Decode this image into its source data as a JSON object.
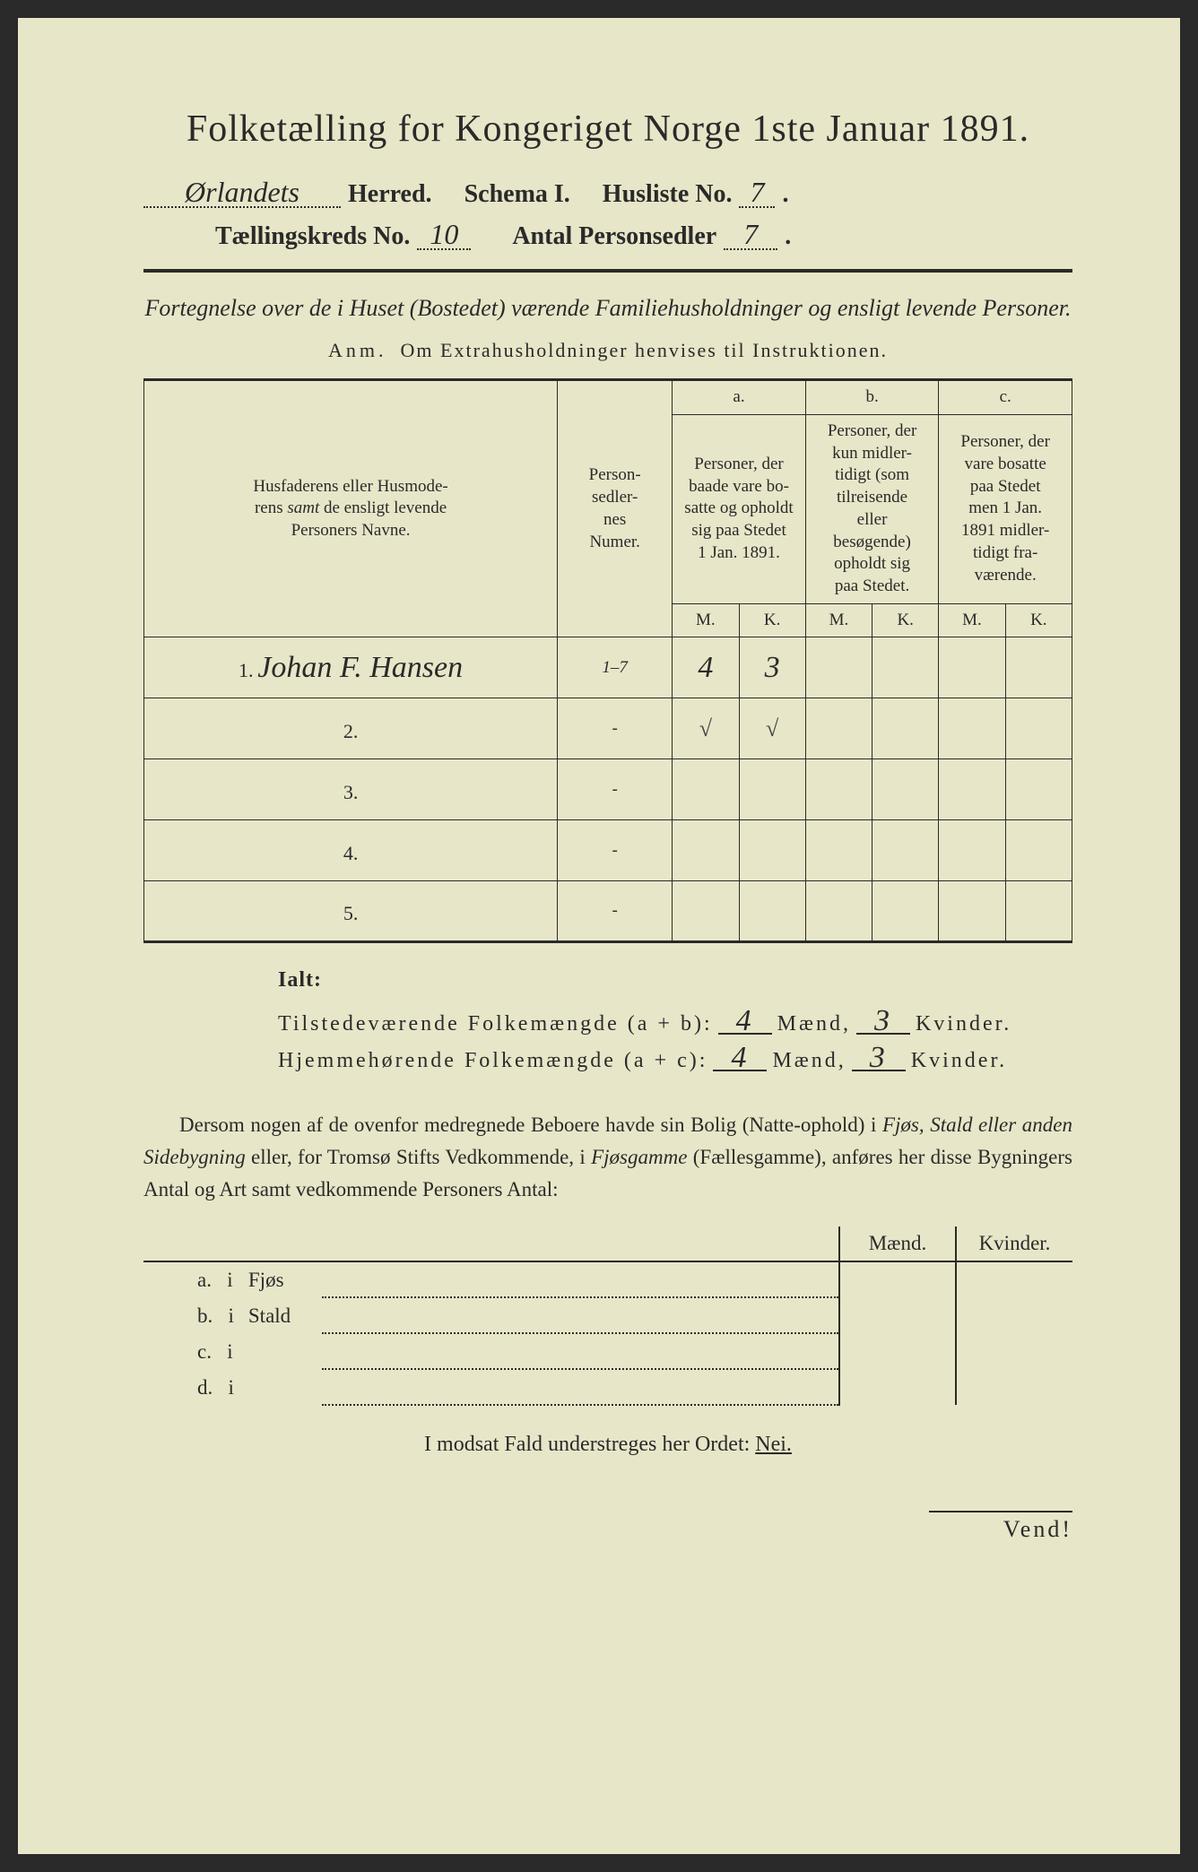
{
  "colors": {
    "paper": "#e8e6c8",
    "ink": "#2a2a2a",
    "outer": "#2a2a2a"
  },
  "title": "Folketælling for Kongeriget Norge 1ste Januar 1891.",
  "header": {
    "herred_value": "Ørlandets",
    "herred_label": "Herred.",
    "schema_label": "Schema I.",
    "husliste_label": "Husliste No.",
    "husliste_no": "7",
    "kreds_label": "Tællingskreds No.",
    "kreds_no": "10",
    "personsedler_label": "Antal Personsedler",
    "personsedler_no": "7"
  },
  "subtitle": "Fortegnelse over de i Huset (Bostedet) værende Familiehusholdninger og ensligt levende Personer.",
  "anm_label": "Anm.",
  "anm_text": "Om Extrahusholdninger henvises til Instruktionen.",
  "table": {
    "col_name": "Husfaderens eller Husmoderens samt de ensligt levende Personers Navne.",
    "col_numer": "Person-sedler-nes Numer.",
    "col_a_label": "a.",
    "col_a": "Personer, der baade vare bosatte og opholdt sig paa Stedet 1 Jan. 1891.",
    "col_b_label": "b.",
    "col_b": "Personer, der kun midlertidigt (som tilreisende eller besøgende) opholdt sig paa Stedet.",
    "col_c_label": "c.",
    "col_c": "Personer, der vare bosatte paa Stedet men 1 Jan. 1891 midlertidigt fraværende.",
    "m": "M.",
    "k": "K.",
    "rows": [
      {
        "num": "1.",
        "name": "Johan F. Hansen",
        "numer": "1–7",
        "a_m": "4",
        "a_k": "3",
        "b_m": "",
        "b_k": "",
        "c_m": "",
        "c_k": ""
      },
      {
        "num": "2.",
        "name": "",
        "numer": "-",
        "a_m": "√",
        "a_k": "√",
        "b_m": "",
        "b_k": "",
        "c_m": "",
        "c_k": ""
      },
      {
        "num": "3.",
        "name": "",
        "numer": "-",
        "a_m": "",
        "a_k": "",
        "b_m": "",
        "b_k": "",
        "c_m": "",
        "c_k": ""
      },
      {
        "num": "4.",
        "name": "",
        "numer": "-",
        "a_m": "",
        "a_k": "",
        "b_m": "",
        "b_k": "",
        "c_m": "",
        "c_k": ""
      },
      {
        "num": "5.",
        "name": "",
        "numer": "-",
        "a_m": "",
        "a_k": "",
        "b_m": "",
        "b_k": "",
        "c_m": "",
        "c_k": ""
      }
    ]
  },
  "ialt": {
    "title": "Ialt:",
    "line1_label": "Tilstedeværende Folkemængde (a + b):",
    "line2_label": "Hjemmehørende Folkemængde (a + c):",
    "maend": "Mænd,",
    "kvinder": "Kvinder.",
    "tilstede_m": "4",
    "tilstede_k": "3",
    "hjemme_m": "4",
    "hjemme_k": "3"
  },
  "para": "Dersom nogen af de ovenfor medregnede Beboere havde sin Bolig (Natteophold) i Fjøs, Stald eller anden Sidebygning eller, for Tromsø Stifts Vedkommende, i Fjøsgamme (Fællesgamme), anføres her disse Bygningers Antal og Art samt vedkommende Personers Antal:",
  "side": {
    "maend": "Mænd.",
    "kvinder": "Kvinder.",
    "rows": [
      {
        "lbl": "a.",
        "i": "i",
        "name": "Fjøs"
      },
      {
        "lbl": "b.",
        "i": "i",
        "name": "Stald"
      },
      {
        "lbl": "c.",
        "i": "i",
        "name": ""
      },
      {
        "lbl": "d.",
        "i": "i",
        "name": ""
      }
    ]
  },
  "modsat": "I modsat Fald understreges her Ordet: ",
  "nei": "Nei.",
  "vend": "Vend!"
}
